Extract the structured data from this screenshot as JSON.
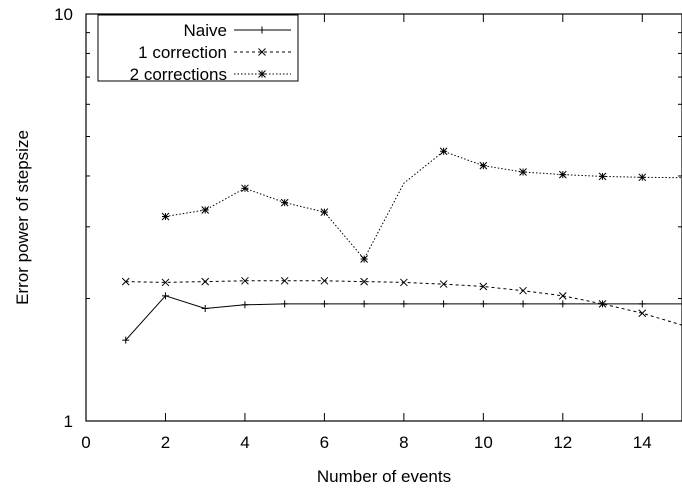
{
  "chart_data": {
    "type": "line",
    "title": "",
    "xlabel": "Number of events",
    "ylabel": "Error power of stepsize",
    "xlim": [
      0,
      15
    ],
    "ylim": [
      1,
      10
    ],
    "yscale": "log",
    "x_ticks": [
      0,
      2,
      4,
      6,
      8,
      10,
      12,
      14
    ],
    "x_tick_labels": [
      "0",
      "2",
      "4",
      "6",
      "8",
      "10",
      "12",
      "14"
    ],
    "y_ticks": [
      1,
      10
    ],
    "y_tick_labels": [
      "1",
      "10"
    ],
    "grid": false,
    "legend_position": "top-left",
    "series": [
      {
        "name": "Naive",
        "style": "solid",
        "marker": "plus",
        "x": [
          1,
          2,
          3,
          4,
          5,
          6,
          7,
          8,
          9,
          10,
          11,
          12,
          13,
          14,
          15
        ],
        "y": [
          1.58,
          2.03,
          1.89,
          1.93,
          1.94,
          1.94,
          1.94,
          1.94,
          1.94,
          1.94,
          1.94,
          1.94,
          1.94,
          1.94,
          1.94
        ],
        "marker_count": 14
      },
      {
        "name": "1 correction",
        "style": "dashed",
        "marker": "cross",
        "x": [
          1,
          2,
          3,
          4,
          5,
          6,
          7,
          8,
          9,
          10,
          11,
          12,
          13,
          14,
          15
        ],
        "y": [
          2.2,
          2.19,
          2.2,
          2.21,
          2.21,
          2.21,
          2.2,
          2.19,
          2.17,
          2.14,
          2.09,
          2.03,
          1.94,
          1.84,
          1.72
        ],
        "marker_count": 14
      },
      {
        "name": "2 corrections",
        "style": "dotted",
        "marker": "star",
        "x": [
          2,
          3,
          4,
          5,
          6,
          7,
          8,
          9,
          10,
          11,
          12,
          13,
          14,
          15
        ],
        "y": [
          3.18,
          3.3,
          3.73,
          3.44,
          3.26,
          2.5,
          3.84,
          4.6,
          4.24,
          4.09,
          4.03,
          3.99,
          3.97,
          3.96
        ],
        "marker_x": [
          2,
          3,
          4,
          5,
          6,
          7,
          9,
          10,
          11,
          12,
          13,
          14
        ]
      }
    ]
  }
}
